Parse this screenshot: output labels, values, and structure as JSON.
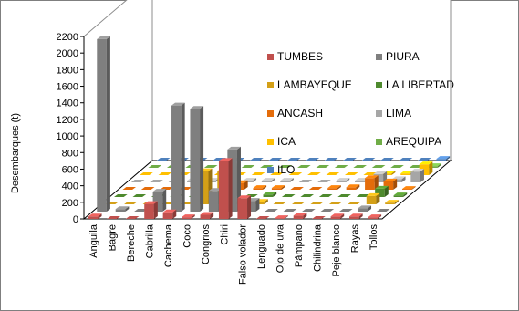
{
  "chart_data": {
    "type": "bar",
    "ylabel": "Desembarques (t)",
    "xlabel": "",
    "ylim": [
      0,
      2200
    ],
    "yticks": [
      0,
      200,
      400,
      600,
      800,
      1000,
      1200,
      1400,
      1600,
      1800,
      2000,
      2200
    ],
    "categories": [
      "Anguila",
      "Bagre",
      "Bereche",
      "Cabrilla",
      "Cachema",
      "Coco",
      "Congrios",
      "Chiri",
      "Falso volador",
      "Lenguado",
      "Ojo de uva",
      "Pámpano",
      "Chilindrina",
      "Peje blanco",
      "Rayas",
      "Tollos"
    ],
    "series": [
      {
        "name": "TUMBES",
        "color": "#C0504D",
        "values": [
          30,
          0,
          0,
          180,
          80,
          20,
          50,
          700,
          250,
          0,
          10,
          40,
          0,
          30,
          30,
          20
        ]
      },
      {
        "name": "PIURA",
        "color": "#7F7F7F",
        "values": [
          2080,
          30,
          0,
          240,
          1280,
          1240,
          250,
          750,
          130,
          0,
          0,
          0,
          0,
          0,
          40,
          0
        ]
      },
      {
        "name": "LAMBAYEQUE",
        "color": "#D4A017",
        "values": [
          0,
          0,
          0,
          0,
          0,
          400,
          400,
          30,
          30,
          0,
          0,
          0,
          0,
          0,
          100,
          20
        ]
      },
      {
        "name": "LA LIBERTAD",
        "color": "#4E8A2E",
        "values": [
          0,
          0,
          0,
          0,
          0,
          0,
          370,
          0,
          30,
          0,
          0,
          0,
          0,
          0,
          100,
          20
        ]
      },
      {
        "name": "ANCASH",
        "color": "#E46C0A",
        "values": [
          0,
          0,
          0,
          0,
          0,
          0,
          80,
          20,
          20,
          0,
          0,
          20,
          30,
          140,
          100,
          10
        ]
      },
      {
        "name": "LIMA",
        "color": "#A6A6A6",
        "values": [
          0,
          0,
          0,
          20,
          20,
          0,
          20,
          20,
          20,
          0,
          0,
          20,
          20,
          100,
          40,
          130
        ]
      },
      {
        "name": "ICA",
        "color": "#FFC000",
        "values": [
          0,
          0,
          0,
          0,
          0,
          0,
          0,
          0,
          0,
          0,
          0,
          0,
          0,
          20,
          20,
          130
        ]
      },
      {
        "name": "AREQUIPA",
        "color": "#70AD47",
        "values": [
          0,
          0,
          0,
          0,
          0,
          0,
          0,
          0,
          0,
          0,
          0,
          0,
          0,
          0,
          0,
          20
        ]
      },
      {
        "name": "ILO",
        "color": "#4F81BD",
        "values": [
          0,
          0,
          0,
          0,
          0,
          0,
          0,
          0,
          0,
          0,
          0,
          0,
          0,
          0,
          0,
          20
        ]
      }
    ],
    "legend": "inside-top-right",
    "grid": false
  }
}
